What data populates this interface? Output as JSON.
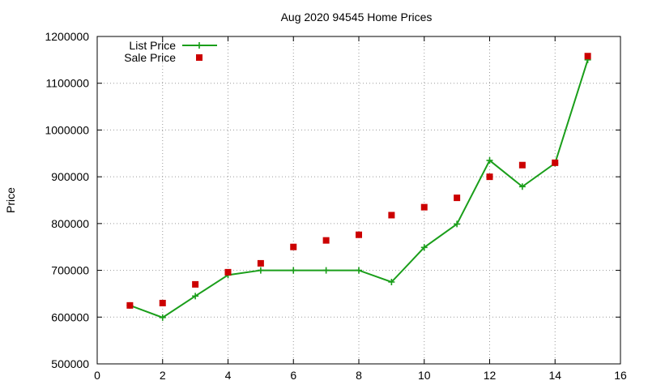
{
  "chart_data": {
    "type": "line",
    "title": "Aug 2020 94545 Home Prices",
    "xlabel": "",
    "ylabel": "Price",
    "xlim": [
      0,
      16
    ],
    "ylim": [
      500000,
      1200000
    ],
    "xticks": [
      0,
      2,
      4,
      6,
      8,
      10,
      12,
      14,
      16
    ],
    "yticks": [
      500000,
      600000,
      700000,
      800000,
      900000,
      1000000,
      1100000,
      1200000
    ],
    "grid": true,
    "legend_position": "top-left",
    "series": [
      {
        "name": "List Price",
        "style": "line+cross",
        "color": "#1a9e1a",
        "x": [
          1,
          2,
          3,
          4,
          5,
          6,
          7,
          8,
          9,
          10,
          11,
          12,
          13,
          14,
          15
        ],
        "values": [
          625000,
          599000,
          645000,
          690000,
          700000,
          700000,
          700000,
          700000,
          675000,
          749000,
          799000,
          935000,
          879000,
          929000,
          1150000
        ]
      },
      {
        "name": "Sale Price",
        "style": "square",
        "color": "#cc0000",
        "x": [
          1,
          2,
          3,
          4,
          5,
          6,
          7,
          8,
          9,
          10,
          11,
          12,
          13,
          14,
          15
        ],
        "values": [
          625000,
          630000,
          670000,
          696000,
          715000,
          750000,
          764000,
          776000,
          818000,
          835000,
          855000,
          900000,
          925000,
          930000,
          1158000
        ]
      }
    ]
  }
}
